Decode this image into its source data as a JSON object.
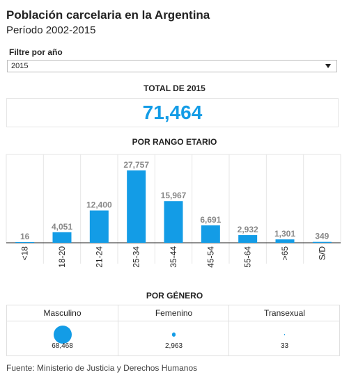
{
  "header": {
    "title": "Población carcelaria en la Argentina",
    "subtitle": "Período 2002-2015"
  },
  "filter": {
    "label": "Filtre por año",
    "selected": "2015"
  },
  "total": {
    "title": "TOTAL DE 2015",
    "value": "71,464"
  },
  "age_section": {
    "title": "POR RANGO ETARIO"
  },
  "gender_section": {
    "title": "POR GÉNERO",
    "columns": [
      {
        "label": "Masculino",
        "value": "68,468"
      },
      {
        "label": "Femenino",
        "value": "2,963"
      },
      {
        "label": "Transexual",
        "value": "33"
      }
    ]
  },
  "source": "Fuente: Ministerio de Justicia y Derechos Humanos",
  "colors": {
    "accent": "#139ce6",
    "value_label": "#888888",
    "grid": "#e6e6e6"
  },
  "chart_data": [
    {
      "type": "bar",
      "title": "POR RANGO ETARIO",
      "categories": [
        "<18",
        "18-20",
        "21-24",
        "25-34",
        "35-44",
        "45-54",
        "55-64",
        ">65",
        "S/D"
      ],
      "values": [
        16,
        4051,
        12400,
        27757,
        15967,
        6691,
        2932,
        1301,
        349
      ],
      "value_labels": [
        "16",
        "4,051",
        "12,400",
        "27,757",
        "15,967",
        "6,691",
        "2,932",
        "1,301",
        "349"
      ],
      "ylim": [
        0,
        27757
      ],
      "grid": true
    },
    {
      "type": "scatter",
      "title": "POR GÉNERO",
      "categories": [
        "Masculino",
        "Femenino",
        "Transexual"
      ],
      "values": [
        68468,
        2963,
        33
      ]
    }
  ]
}
